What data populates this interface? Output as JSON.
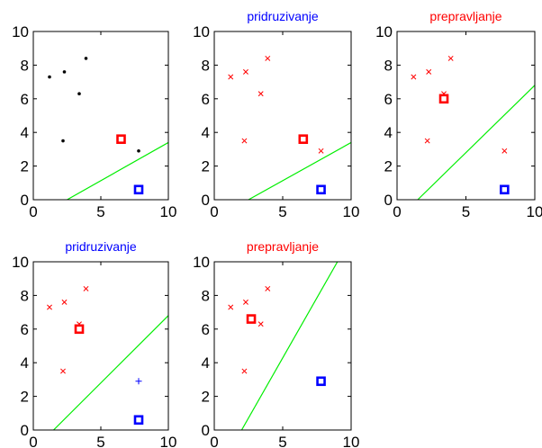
{
  "colors": {
    "red": "#ff0000",
    "blue": "#0000ff",
    "green": "#00ee00",
    "black": "#000000"
  },
  "chart_data": [
    {
      "type": "scatter",
      "title": "",
      "xlim": [
        0,
        10
      ],
      "ylim": [
        0,
        10
      ],
      "xticks": [
        "0",
        "5",
        "10"
      ],
      "yticks": [
        "0",
        "2",
        "4",
        "6",
        "8",
        "10"
      ],
      "points": {
        "marker": "dot",
        "color": "black",
        "x": [
          1.2,
          2.3,
          3.4,
          3.9,
          2.2,
          7.8
        ],
        "y": [
          7.3,
          7.6,
          6.3,
          8.4,
          3.5,
          2.9
        ]
      },
      "red_square": [
        6.5,
        3.6
      ],
      "blue_square": [
        7.8,
        0.6
      ],
      "line": [
        [
          2.5,
          0
        ],
        [
          10,
          3.4
        ]
      ]
    },
    {
      "type": "scatter",
      "title": "pridruzivanje",
      "title_color": "blue",
      "xlim": [
        0,
        10
      ],
      "ylim": [
        0,
        10
      ],
      "xticks": [
        "0",
        "5",
        "10"
      ],
      "yticks": [
        "0",
        "2",
        "4",
        "6",
        "8",
        "10"
      ],
      "points": {
        "marker": "x",
        "color": "red",
        "x": [
          1.2,
          2.3,
          3.4,
          3.9,
          2.2,
          7.8
        ],
        "y": [
          7.3,
          7.6,
          6.3,
          8.4,
          3.5,
          2.9
        ]
      },
      "red_square": [
        6.5,
        3.6
      ],
      "blue_square": [
        7.8,
        0.6
      ],
      "line": [
        [
          2.5,
          0
        ],
        [
          10,
          3.4
        ]
      ]
    },
    {
      "type": "scatter",
      "title": "prepravljanje",
      "title_color": "red",
      "xlim": [
        0,
        10
      ],
      "ylim": [
        0,
        10
      ],
      "xticks": [
        "0",
        "5",
        "10"
      ],
      "yticks": [
        "0",
        "2",
        "4",
        "6",
        "8",
        "10"
      ],
      "points": {
        "marker": "x",
        "color": "red",
        "x": [
          1.2,
          2.3,
          3.4,
          3.9,
          2.2,
          7.8
        ],
        "y": [
          7.3,
          7.6,
          6.3,
          8.4,
          3.5,
          2.9
        ]
      },
      "red_square": [
        3.4,
        6.0
      ],
      "blue_square": [
        7.8,
        0.6
      ],
      "line": [
        [
          1.5,
          0
        ],
        [
          10,
          6.8
        ]
      ]
    },
    {
      "type": "scatter",
      "title": "pridruzivanje",
      "title_color": "blue",
      "xlim": [
        0,
        10
      ],
      "ylim": [
        0,
        10
      ],
      "xticks": [
        "0",
        "5",
        "10"
      ],
      "yticks": [
        "0",
        "2",
        "4",
        "6",
        "8",
        "10"
      ],
      "points": {
        "marker": "x",
        "color": "red",
        "x": [
          1.2,
          2.3,
          3.4,
          3.9,
          2.2
        ],
        "y": [
          7.3,
          7.6,
          6.3,
          8.4,
          3.5
        ]
      },
      "extra_points": {
        "marker": "plus",
        "color": "blue",
        "x": [
          7.8
        ],
        "y": [
          2.9
        ]
      },
      "red_square": [
        3.4,
        6.0
      ],
      "blue_square": [
        7.8,
        0.6
      ],
      "line": [
        [
          1.5,
          0
        ],
        [
          10,
          6.8
        ]
      ]
    },
    {
      "type": "scatter",
      "title": "prepravljanje",
      "title_color": "red",
      "xlim": [
        0,
        10
      ],
      "ylim": [
        0,
        10
      ],
      "xticks": [
        "0",
        "5",
        "10"
      ],
      "yticks": [
        "0",
        "2",
        "4",
        "6",
        "8",
        "10"
      ],
      "points": {
        "marker": "x",
        "color": "red",
        "x": [
          1.2,
          2.3,
          3.4,
          3.9,
          2.2
        ],
        "y": [
          7.3,
          7.6,
          6.3,
          8.4,
          3.5
        ]
      },
      "red_square": [
        2.7,
        6.6
      ],
      "blue_square": [
        7.8,
        2.9
      ],
      "line": [
        [
          2.0,
          0
        ],
        [
          9.0,
          10
        ]
      ]
    }
  ]
}
